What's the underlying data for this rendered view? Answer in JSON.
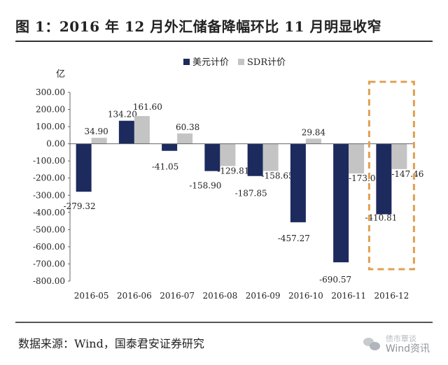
{
  "header": {
    "title": "图 1：2016 年 12 月外汇储备降幅环比 11 月明显收窄"
  },
  "footer": {
    "source": "数据来源：Wind，国泰君安证券研究",
    "watermark_top": "债市覃谈",
    "watermark_bottom": "Wind资讯"
  },
  "chart_data": {
    "type": "bar",
    "ylabel": "亿",
    "ylim": [
      -800,
      300
    ],
    "yticks": [
      300,
      200,
      100,
      0,
      -100,
      -200,
      -300,
      -400,
      -500,
      -600,
      -700,
      -800
    ],
    "ytick_labels": [
      "300.00",
      "200.00",
      "100.00",
      "0.00",
      "-100.00",
      "-200.00",
      "-300.00",
      "-400.00",
      "-500.00",
      "-600.00",
      "-700.00",
      "-800.00"
    ],
    "grid": false,
    "legend_position": "top",
    "categories": [
      "2016-05",
      "2016-06",
      "2016-07",
      "2016-08",
      "2016-09",
      "2016-10",
      "2016-11",
      "2016-12"
    ],
    "series": [
      {
        "name": "美元计价",
        "color": "#1c2a5e",
        "values": [
          -279.32,
          134.2,
          -41.05,
          -158.9,
          -187.85,
          -457.27,
          -690.57,
          -410.81
        ],
        "labels": [
          "-279.32",
          "134.20",
          "-41.05",
          "-158.90",
          "-187.85",
          "-457.27",
          "-690.57",
          "-410.81"
        ]
      },
      {
        "name": "SDR计价",
        "color": "#c4c4c4",
        "values": [
          34.9,
          161.6,
          60.38,
          -129.81,
          -158.65,
          29.84,
          -173.08,
          -147.46
        ],
        "labels": [
          "34.90",
          "161.60",
          "60.38",
          "-129.81",
          "-158.65",
          "29.84",
          "-173.08",
          "-147.46"
        ]
      }
    ],
    "highlight": {
      "category": "2016-12",
      "style": "dashed-box",
      "color": "#e0a050"
    }
  }
}
